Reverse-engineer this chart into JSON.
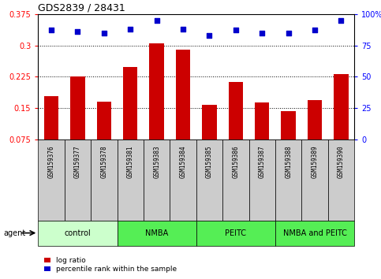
{
  "title": "GDS2839 / 28431",
  "samples": [
    "GSM159376",
    "GSM159377",
    "GSM159378",
    "GSM159381",
    "GSM159383",
    "GSM159384",
    "GSM159385",
    "GSM159386",
    "GSM159387",
    "GSM159388",
    "GSM159389",
    "GSM159390"
  ],
  "log_ratio": [
    0.178,
    0.225,
    0.165,
    0.248,
    0.305,
    0.29,
    0.157,
    0.212,
    0.163,
    0.143,
    0.17,
    0.232
  ],
  "percentile_rank": [
    87,
    86,
    85,
    88,
    95,
    88,
    83,
    87,
    85,
    85,
    87,
    95
  ],
  "groups": [
    {
      "label": "control",
      "start": 0,
      "end": 3,
      "color": "#ccffcc"
    },
    {
      "label": "NMBA",
      "start": 3,
      "end": 6,
      "color": "#55ee55"
    },
    {
      "label": "PEITC",
      "start": 6,
      "end": 9,
      "color": "#55ee55"
    },
    {
      "label": "NMBA and PEITC",
      "start": 9,
      "end": 12,
      "color": "#55ee55"
    }
  ],
  "bar_color": "#cc0000",
  "dot_color": "#0000cc",
  "ylim_left": [
    0.075,
    0.375
  ],
  "ylim_right": [
    0,
    100
  ],
  "yticks_left": [
    0.075,
    0.15,
    0.225,
    0.3,
    0.375
  ],
  "yticks_right": [
    0,
    25,
    50,
    75,
    100
  ],
  "ytick_labels_left": [
    "0.075",
    "0.15",
    "0.225",
    "0.3",
    "0.375"
  ],
  "ytick_labels_right": [
    "0",
    "25",
    "50",
    "75",
    "100%"
  ],
  "hlines": [
    0.15,
    0.225,
    0.3
  ],
  "legend_items": [
    {
      "label": "log ratio",
      "color": "#cc0000"
    },
    {
      "label": "percentile rank within the sample",
      "color": "#0000cc"
    }
  ],
  "bar_bottom": 0.075,
  "gray_box_color": "#cccccc",
  "agent_label": "agent"
}
